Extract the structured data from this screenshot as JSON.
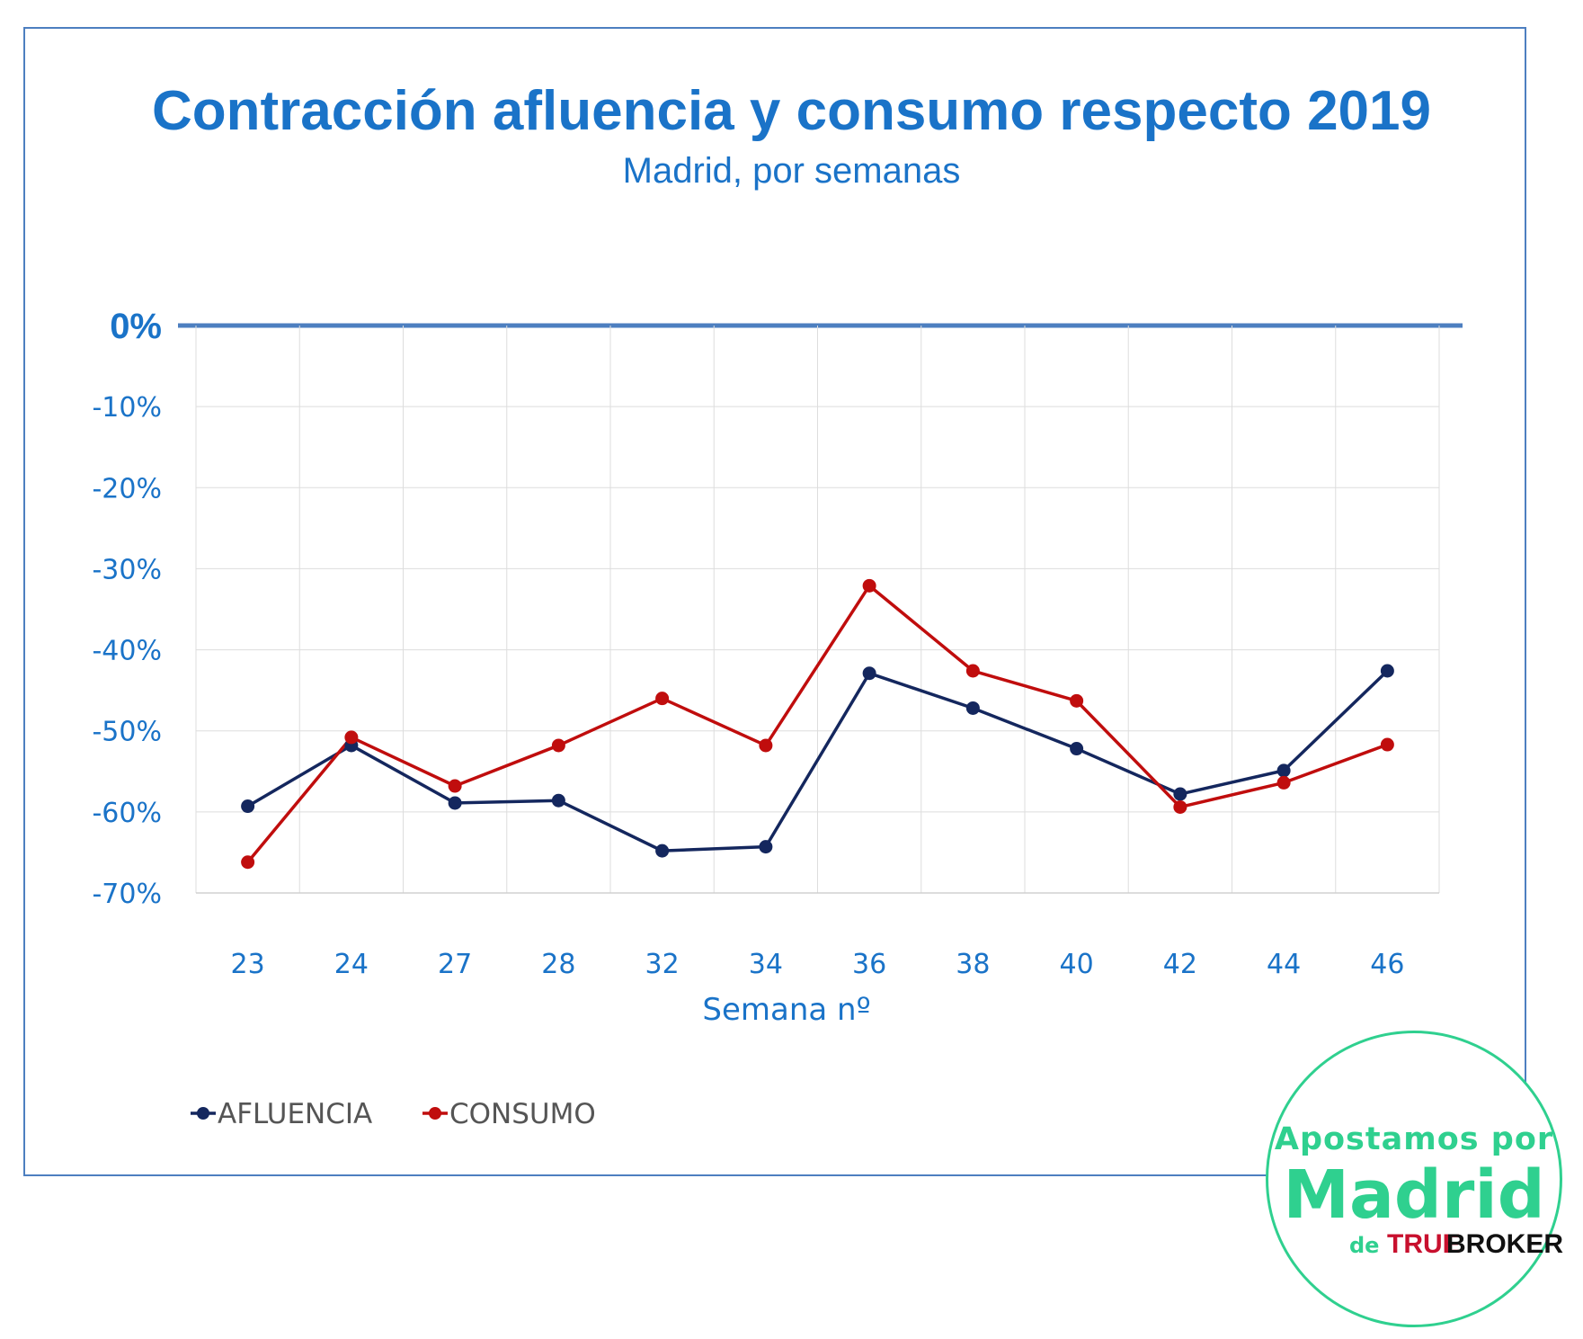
{
  "chart_data": {
    "type": "line",
    "title": "Contracción afluencia y consumo respecto 2019",
    "subtitle": "Madrid, por semanas",
    "xlabel": "Semana nº",
    "ylabel": "",
    "categories": [
      "23",
      "24",
      "27",
      "28",
      "32",
      "34",
      "36",
      "38",
      "40",
      "42",
      "44",
      "46"
    ],
    "ylim": [
      -70,
      0
    ],
    "yticks": [
      0,
      -10,
      -20,
      -30,
      -40,
      -50,
      -60,
      -70
    ],
    "ytick_labels": [
      "0%",
      "-10%",
      "-20%",
      "-30%",
      "-40%",
      "-50%",
      "-60%",
      "-70%"
    ],
    "grid": true,
    "legend_position": "bottom-left",
    "series": [
      {
        "name": "AFLUENCIA",
        "color": "#14275e",
        "values": [
          -59.3,
          -51.8,
          -58.9,
          -58.6,
          -64.8,
          -64.3,
          -42.9,
          -47.2,
          -52.2,
          -57.8,
          -54.9,
          -42.6
        ]
      },
      {
        "name": "CONSUMO",
        "color": "#c00d0d",
        "values": [
          -66.2,
          -50.8,
          -56.8,
          -51.8,
          -46.0,
          -51.8,
          -32.1,
          -42.6,
          -46.3,
          -59.4,
          -56.4,
          -51.7
        ]
      }
    ]
  },
  "logo": {
    "line1": "Apostamos por",
    "line2": "Madrid",
    "line3": "de",
    "brand_a": "TRUE",
    "brand_b": "BROKER"
  },
  "colors": {
    "accent": "#1a73c8",
    "frame": "#4d7fc0",
    "zero_line": "#4d7fc0",
    "grid": "#dddddd",
    "logo": "#2fd08f"
  }
}
